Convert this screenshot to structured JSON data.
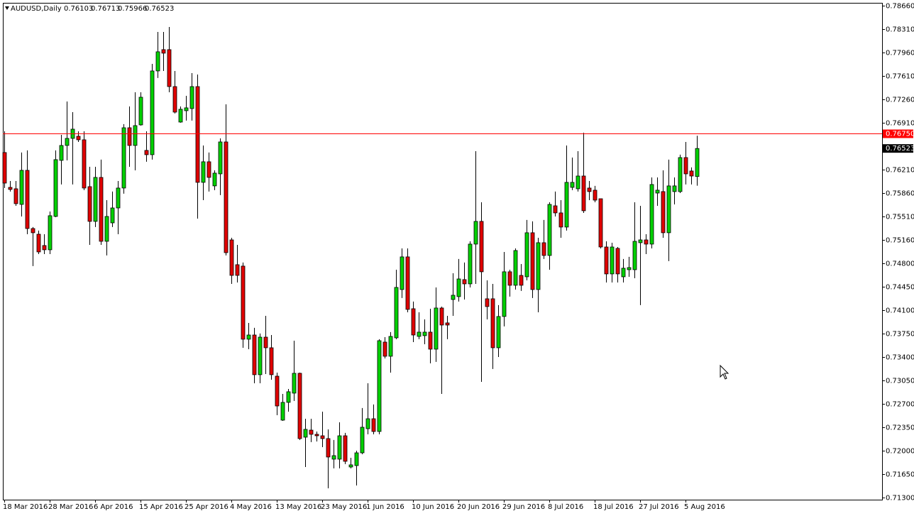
{
  "chart_data": {
    "type": "candlestick",
    "symbol": "AUDUSD,Daily",
    "categories": [
      "18 Mar 2016",
      null,
      null,
      null,
      null,
      null,
      null,
      null,
      "28 Mar 2016",
      null,
      null,
      null,
      null,
      null,
      null,
      null,
      "6 Apr 2016",
      null,
      null,
      null,
      null,
      null,
      null,
      null,
      "15 Apr 2016",
      null,
      null,
      null,
      null,
      null,
      null,
      null,
      "25 Apr 2016",
      null,
      null,
      null,
      null,
      null,
      null,
      null,
      "4 May 2016",
      null,
      null,
      null,
      null,
      null,
      null,
      null,
      "13 May 2016",
      null,
      null,
      null,
      null,
      null,
      null,
      null,
      "23 May 2016",
      null,
      null,
      null,
      null,
      null,
      null,
      null,
      "1 Jun 2016",
      null,
      null,
      null,
      null,
      null,
      null,
      null,
      "10 Jun 2016",
      null,
      null,
      null,
      null,
      null,
      null,
      null,
      "20 Jun 2016",
      null,
      null,
      null,
      null,
      null,
      null,
      null,
      "29 Jun 2016",
      null,
      null,
      null,
      null,
      null,
      null,
      null,
      "8 Jul 2016",
      null,
      null,
      null,
      null,
      null,
      null,
      null,
      "18 Jul 2016",
      null,
      null,
      null,
      null,
      null,
      null,
      null,
      "27 Jul 2016",
      null,
      null,
      null,
      null,
      null,
      null,
      null,
      "5 Aug 2016",
      null,
      null
    ],
    "open": [
      0.76462,
      0.75941,
      0.7592,
      0.75686,
      0.76196,
      0.75325,
      0.7524,
      0.75071,
      0.75007,
      0.75506,
      0.76345,
      0.76568,
      0.76674,
      0.76706,
      0.76653,
      0.75952,
      0.75432,
      0.7609,
      0.75134,
      0.7541,
      0.75633,
      0.75931,
      0.76833,
      0.76568,
      0.76876,
      0.76494,
      0.7643,
      0.77683,
      0.78002,
      0.78002,
      0.77449,
      0.76918,
      0.77088,
      0.7712,
      0.77449,
      0.76016,
      0.76324,
      0.75963,
      0.76143,
      0.76621,
      0.75155,
      0.74784,
      0.74763,
      0.73669,
      0.73732,
      0.73138,
      0.737,
      0.73541,
      0.73116,
      0.72458,
      0.72724,
      0.72862,
      0.73159,
      0.72203,
      0.72309,
      0.72246,
      0.72224,
      0.72182,
      0.71874,
      0.71874,
      0.72224,
      0.71757,
      0.71778,
      0.71969,
      0.7233,
      0.72479,
      0.72288,
      0.73626,
      0.73414,
      0.7369,
      0.74412,
      0.74901,
      0.74125,
      0.73711,
      0.73722,
      0.73775,
      0.7352,
      0.74136,
      0.73913,
      0.74263,
      0.74306,
      0.74561,
      0.74497,
      0.75092,
      0.75432,
      0.74274,
      0.74274,
      0.73541,
      0.74009,
      0.74678,
      0.74476,
      0.74624,
      0.74603,
      0.75262,
      0.74412,
      0.75113,
      0.74922,
      0.75665,
      0.75559,
      0.75347,
      0.75941,
      0.7592,
      0.76111,
      0.75931,
      0.75899,
      0.75771,
      0.75049,
      0.74646,
      0.75028,
      0.74603,
      0.74709,
      0.74709,
      0.75113,
      0.75155,
      0.75092,
      0.75856,
      0.75878,
      0.75262,
      0.75878,
      0.75878,
      0.76387,
      0.76186,
      0.76103
    ],
    "high": [
      0.7678,
      0.76037,
      0.76037,
      0.76462,
      0.76494,
      0.75347,
      0.75294,
      0.7524,
      0.7558,
      0.76494,
      0.76727,
      0.77226,
      0.77067,
      0.7678,
      0.7678,
      0.76249,
      0.76249,
      0.76356,
      0.7575,
      0.75878,
      0.76037,
      0.76887,
      0.77152,
      0.77364,
      0.77364,
      0.7678,
      0.77789,
      0.78267,
      0.78267,
      0.78341,
      0.77683,
      0.77152,
      0.77311,
      0.77651,
      0.7763,
      0.76568,
      0.76462,
      0.76196,
      0.76674,
      0.77184,
      0.75187,
      0.75081,
      0.74816,
      0.73913,
      0.73839,
      0.73754,
      0.74019,
      0.73732,
      0.73169,
      0.72851,
      0.72925,
      0.73647,
      0.73169,
      0.72479,
      0.72479,
      0.72288,
      0.72585,
      0.7232,
      0.72161,
      0.72426,
      0.72267,
      0.71895,
      0.72001,
      0.72639,
      0.7301,
      0.72692,
      0.73669,
      0.737,
      0.73775,
      0.74709,
      0.75028,
      0.75028,
      0.74232,
      0.74072,
      0.73966,
      0.74125,
      0.74444,
      0.74157,
      0.74019,
      0.74656,
      0.74869,
      0.74816,
      0.75134,
      0.76483,
      0.75718,
      0.7455,
      0.74497,
      0.74179,
      0.74975,
      0.74709,
      0.75028,
      0.74794,
      0.75453,
      0.75432,
      0.75187,
      0.75453,
      0.75718,
      0.75878,
      0.7575,
      0.76568,
      0.76387,
      0.76483,
      0.76759,
      0.76037,
      0.75963,
      0.75771,
      0.75134,
      0.75113,
      0.75049,
      0.74869,
      0.74901,
      0.75718,
      0.75665,
      0.7524,
      0.7609,
      0.7609,
      0.76196,
      0.76356,
      0.7609,
      0.7643,
      0.76621,
      0.76239,
      0.76713
    ],
    "low": [
      0.75931,
      0.75878,
      0.75665,
      0.75506,
      0.7524,
      0.74763,
      0.74943,
      0.74943,
      0.74943,
      0.75495,
      0.75984,
      0.76345,
      0.75984,
      0.76621,
      0.75899,
      0.75081,
      0.75347,
      0.75081,
      0.74922,
      0.75347,
      0.7524,
      0.75846,
      0.76249,
      0.76196,
      0.76865,
      0.76324,
      0.76356,
      0.77577,
      0.77683,
      0.77364,
      0.77046,
      0.76908,
      0.7694,
      0.7694,
      0.75474,
      0.7575,
      0.75878,
      0.75899,
      0.75825,
      0.74922,
      0.74497,
      0.74518,
      0.73541,
      0.7352,
      0.7301,
      0.7301,
      0.73148,
      0.73063,
      0.72532,
      0.72447,
      0.72585,
      0.72745,
      0.72161,
      0.71757,
      0.72129,
      0.72139,
      0.72054,
      0.71438,
      0.71736,
      0.71736,
      0.718,
      0.71736,
      0.71481,
      0.71948,
      0.72246,
      0.72246,
      0.72246,
      0.73382,
      0.73169,
      0.73669,
      0.74285,
      0.74072,
      0.73626,
      0.73669,
      0.73594,
      0.73308,
      0.73329,
      0.72851,
      0.73669,
      0.74019,
      0.74232,
      0.74263,
      0.74444,
      0.74497,
      0.73031,
      0.73966,
      0.73223,
      0.73403,
      0.7386,
      0.74306,
      0.74412,
      0.74391,
      0.7455,
      0.74285,
      0.74072,
      0.74869,
      0.74709,
      0.75506,
      0.75187,
      0.75294,
      0.75899,
      0.75878,
      0.75559,
      0.7575,
      0.75718,
      0.75028,
      0.74518,
      0.74518,
      0.74518,
      0.74518,
      0.74603,
      0.74582,
      0.74179,
      0.74943,
      0.75028,
      0.75665,
      0.75187,
      0.74837,
      0.75686,
      0.75856,
      0.75984,
      0.75984,
      0.75966
    ],
    "close": [
      0.76005,
      0.7591,
      0.75697,
      0.76196,
      0.75325,
      0.75262,
      0.74975,
      0.75007,
      0.75517,
      0.76356,
      0.76568,
      0.76674,
      0.76812,
      0.76653,
      0.75931,
      0.75432,
      0.7609,
      0.75134,
      0.75506,
      0.75633,
      0.75931,
      0.76833,
      0.76568,
      0.76865,
      0.7729,
      0.7643,
      0.77683,
      0.7797,
      0.77949,
      0.77449,
      0.77067,
      0.7711,
      0.77131,
      0.77449,
      0.76016,
      0.76324,
      0.7609,
      0.76154,
      0.76621,
      0.74964,
      0.74624,
      0.74624,
      0.73669,
      0.73732,
      0.73138,
      0.737,
      0.73541,
      0.73138,
      0.7267,
      0.72724,
      0.72883,
      0.73159,
      0.72182,
      0.7232,
      0.72246,
      0.72224,
      0.72182,
      0.71906,
      0.71927,
      0.72224,
      0.71842,
      0.71789,
      0.71969,
      0.72352,
      0.72479,
      0.72288,
      0.73647,
      0.73414,
      0.73711,
      0.74444,
      0.74901,
      0.74115,
      0.73732,
      0.73775,
      0.73775,
      0.7352,
      0.74136,
      0.73881,
      0.73881,
      0.74327,
      0.74571,
      0.74497,
      0.75092,
      0.75432,
      0.74678,
      0.74157,
      0.73541,
      0.74009,
      0.74678,
      0.74476,
      0.74996,
      0.74476,
      0.75262,
      0.74412,
      0.75113,
      0.74922,
      0.75686,
      0.75559,
      0.75347,
      0.76016,
      0.76016,
      0.76111,
      0.75591,
      0.75878,
      0.7575,
      0.75049,
      0.74646,
      0.75049,
      0.74646,
      0.74731,
      0.74741,
      0.75134,
      0.75155,
      0.75092,
      0.75984,
      0.75899,
      0.75262,
      0.75963,
      0.75963,
      0.76387,
      0.76143,
      0.76111,
      0.76523
    ],
    "up_color": "#00d000",
    "down_color": "#e00000",
    "ylim": [
      0.71268,
      0.78702
    ],
    "yticks": [
      {
        "value": 0.7866,
        "label": "0.78660"
      },
      {
        "value": 0.7831,
        "label": "0.78310"
      },
      {
        "value": 0.7796,
        "label": "0.77960"
      },
      {
        "value": 0.7761,
        "label": "0.77610"
      },
      {
        "value": 0.7726,
        "label": "0.77260"
      },
      {
        "value": 0.7691,
        "label": "0.76910"
      },
      {
        "value": 0.7621,
        "label": "0.76210"
      },
      {
        "value": 0.7586,
        "label": "0.75860"
      },
      {
        "value": 0.7551,
        "label": "0.75510"
      },
      {
        "value": 0.7516,
        "label": "0.75160"
      },
      {
        "value": 0.748,
        "label": "0.74800"
      },
      {
        "value": 0.7445,
        "label": "0.74450"
      },
      {
        "value": 0.741,
        "label": "0.74100"
      },
      {
        "value": 0.7375,
        "label": "0.73750"
      },
      {
        "value": 0.734,
        "label": "0.73400"
      },
      {
        "value": 0.7305,
        "label": "0.73050"
      },
      {
        "value": 0.727,
        "label": "0.72700"
      },
      {
        "value": 0.7235,
        "label": "0.72350"
      },
      {
        "value": 0.72,
        "label": "0.72000"
      },
      {
        "value": 0.7165,
        "label": "0.71650"
      },
      {
        "value": 0.713,
        "label": "0.71300"
      }
    ],
    "hline": {
      "value": 0.7675,
      "label": "0.76750",
      "color": "#ff0000"
    }
  }
}
